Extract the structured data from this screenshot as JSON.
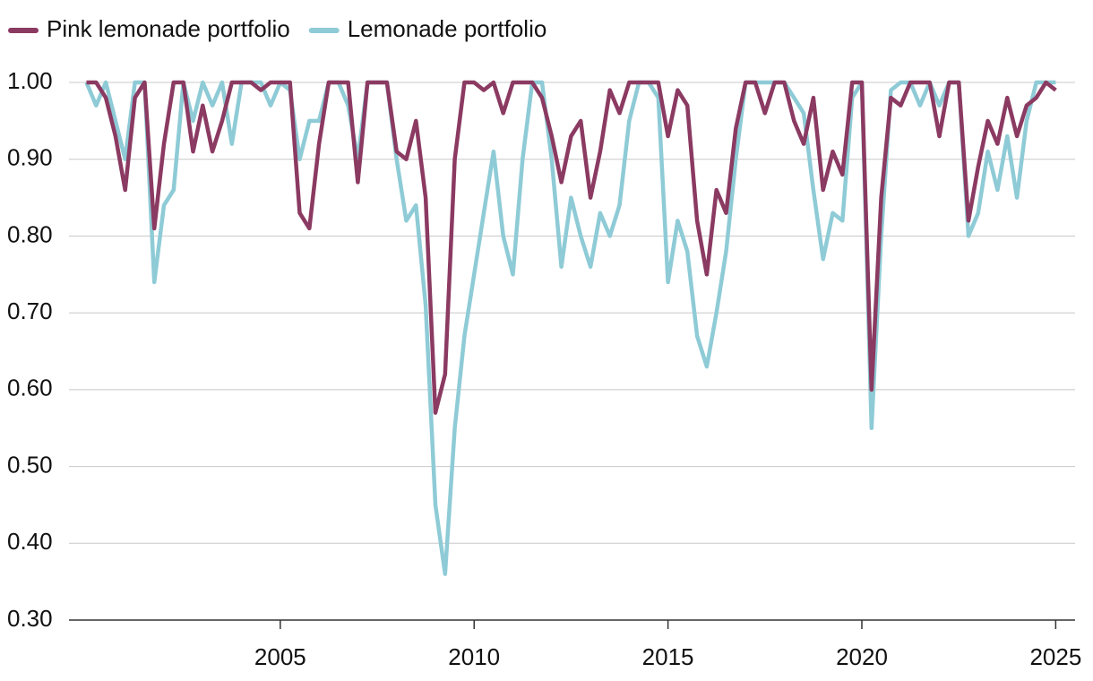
{
  "chart_data": {
    "type": "line",
    "x": [
      2000,
      2000.25,
      2000.5,
      2000.75,
      2001,
      2001.25,
      2001.5,
      2001.75,
      2002,
      2002.25,
      2002.5,
      2002.75,
      2003,
      2003.25,
      2003.5,
      2003.75,
      2004,
      2004.25,
      2004.5,
      2004.75,
      2005,
      2005.25,
      2005.5,
      2005.75,
      2006,
      2006.25,
      2006.5,
      2006.75,
      2007,
      2007.25,
      2007.5,
      2007.75,
      2008,
      2008.25,
      2008.5,
      2008.75,
      2009,
      2009.25,
      2009.5,
      2009.75,
      2010,
      2010.25,
      2010.5,
      2010.75,
      2011,
      2011.25,
      2011.5,
      2011.75,
      2012,
      2012.25,
      2012.5,
      2012.75,
      2013,
      2013.25,
      2013.5,
      2013.75,
      2014,
      2014.25,
      2014.5,
      2014.75,
      2015,
      2015.25,
      2015.5,
      2015.75,
      2016,
      2016.25,
      2016.5,
      2016.75,
      2017,
      2017.25,
      2017.5,
      2017.75,
      2018,
      2018.25,
      2018.5,
      2018.75,
      2019,
      2019.25,
      2019.5,
      2019.75,
      2020,
      2020.25,
      2020.5,
      2020.75,
      2021,
      2021.25,
      2021.5,
      2021.75,
      2022,
      2022.25,
      2022.5,
      2022.75,
      2023,
      2023.25,
      2023.5,
      2023.75,
      2024,
      2024.25,
      2024.5,
      2024.75,
      2025
    ],
    "series": [
      {
        "name": "Pink lemonade portfolio",
        "color": "#8b3a62",
        "values": [
          1.0,
          1.0,
          0.98,
          0.93,
          0.86,
          0.98,
          1.0,
          0.81,
          0.92,
          1.0,
          1.0,
          0.91,
          0.97,
          0.91,
          0.95,
          1.0,
          1.0,
          1.0,
          0.99,
          1.0,
          1.0,
          1.0,
          0.83,
          0.81,
          0.92,
          1.0,
          1.0,
          1.0,
          0.87,
          1.0,
          1.0,
          1.0,
          0.91,
          0.9,
          0.95,
          0.85,
          0.57,
          0.62,
          0.9,
          1.0,
          1.0,
          0.99,
          1.0,
          0.96,
          1.0,
          1.0,
          1.0,
          0.98,
          0.93,
          0.87,
          0.93,
          0.95,
          0.85,
          0.91,
          0.99,
          0.96,
          1.0,
          1.0,
          1.0,
          1.0,
          0.93,
          0.99,
          0.97,
          0.82,
          0.75,
          0.86,
          0.83,
          0.94,
          1.0,
          1.0,
          0.96,
          1.0,
          1.0,
          0.95,
          0.92,
          0.98,
          0.86,
          0.91,
          0.88,
          1.0,
          1.0,
          0.6,
          0.85,
          0.98,
          0.97,
          1.0,
          1.0,
          1.0,
          0.93,
          1.0,
          1.0,
          0.82,
          0.89,
          0.95,
          0.92,
          0.98,
          0.93,
          0.97,
          0.98,
          1.0,
          0.99
        ]
      },
      {
        "name": "Lemonade portfolio",
        "color": "#8ecbd6",
        "values": [
          1.0,
          0.97,
          1.0,
          0.95,
          0.9,
          1.0,
          1.0,
          0.74,
          0.84,
          0.86,
          1.0,
          0.95,
          1.0,
          0.97,
          1.0,
          0.92,
          1.0,
          1.0,
          1.0,
          0.97,
          1.0,
          0.99,
          0.9,
          0.95,
          0.95,
          1.0,
          1.0,
          0.97,
          0.9,
          1.0,
          1.0,
          1.0,
          0.9,
          0.82,
          0.84,
          0.71,
          0.45,
          0.36,
          0.55,
          0.67,
          0.75,
          0.83,
          0.91,
          0.8,
          0.75,
          0.9,
          1.0,
          1.0,
          0.9,
          0.76,
          0.85,
          0.8,
          0.76,
          0.83,
          0.8,
          0.84,
          0.95,
          1.0,
          1.0,
          0.98,
          0.74,
          0.82,
          0.78,
          0.67,
          0.63,
          0.7,
          0.78,
          0.9,
          1.0,
          1.0,
          1.0,
          1.0,
          1.0,
          0.98,
          0.96,
          0.86,
          0.77,
          0.83,
          0.82,
          0.98,
          1.0,
          0.55,
          0.8,
          0.99,
          1.0,
          1.0,
          0.97,
          1.0,
          0.97,
          1.0,
          1.0,
          0.8,
          0.83,
          0.91,
          0.86,
          0.93,
          0.85,
          0.95,
          1.0,
          1.0,
          1.0
        ]
      }
    ],
    "xlim": [
      1999.55,
      2025.5
    ],
    "xticks": [
      2005,
      2010,
      2015,
      2020,
      2025
    ],
    "ylim": [
      0.3,
      1.0
    ],
    "yticks": [
      {
        "value": 0.3,
        "label": "0.30"
      },
      {
        "value": 0.4,
        "label": "0.40"
      },
      {
        "value": 0.5,
        "label": "0.50"
      },
      {
        "value": 0.6,
        "label": "0.60"
      },
      {
        "value": 0.7,
        "label": "0.70"
      },
      {
        "value": 0.8,
        "label": "0.80"
      },
      {
        "value": 0.9,
        "label": "0.90"
      },
      {
        "value": 1.0,
        "label": "1.00"
      }
    ],
    "grid": true
  }
}
